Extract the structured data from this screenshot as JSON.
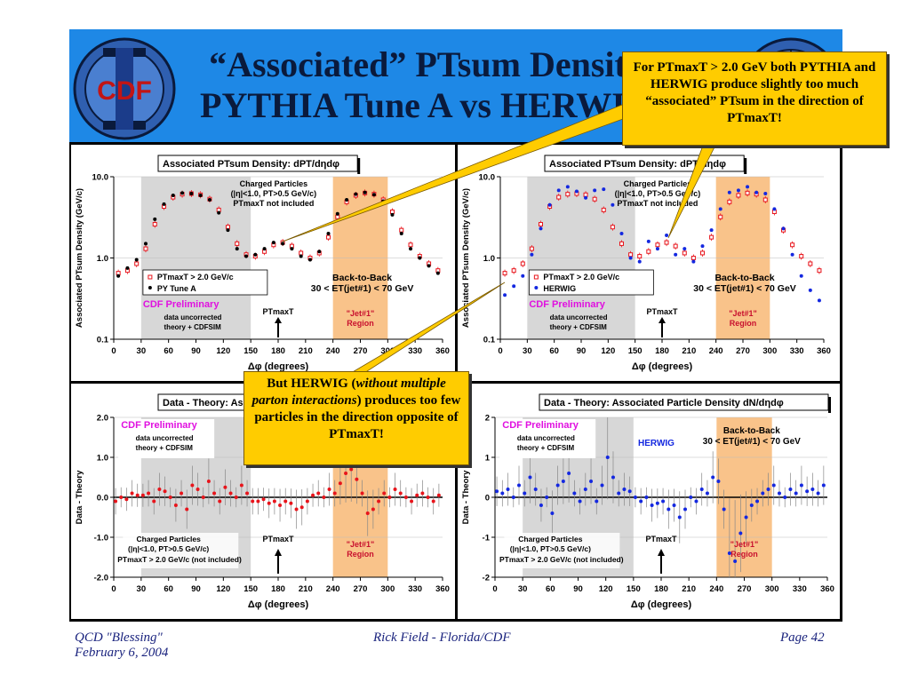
{
  "slide": {
    "title_line1": "“Associated” PTsum Density",
    "title_line2": "PYTHIA Tune A vs HERWIG",
    "logo_text": "CDF",
    "callout_top": "For PTmaxT > 2.0 GeV both PYTHIA and HERWIG produce slightly too much “associated” PTsum in the direction of PTmaxT!",
    "callout_mid_line1": "But HERWIG (",
    "callout_mid_italic": "without multiple parton interactions",
    "callout_mid_line2": ") produces too few particles in the direction opposite of PTmaxT!",
    "footer_left_1": "QCD \"Blessing\"",
    "footer_left_2": "February 6, 2004",
    "footer_center": "Rick Field - Florida/CDF",
    "footer_right": "Page 42"
  },
  "colors": {
    "pythia_red": "#e8141b",
    "herwig_blue": "#1428e0",
    "region_gray": "#d7d7d7",
    "region_orange": "#f9c38a",
    "banner": "#1e88e6",
    "callout": "#ffcc00",
    "prelim_magenta": "#e010e0"
  },
  "chart_data": [
    {
      "id": "tl",
      "type": "scatter",
      "title": "Associated PTsum Density: dPT/dηdφ",
      "xlabel": "Δφ (degrees)",
      "ylabel": "Associated PTsum Density (GeV/c)",
      "yscale": "log",
      "xlim": [
        0,
        360
      ],
      "ylim": [
        0.1,
        10
      ],
      "xticks": [
        "0",
        "30",
        "60",
        "90",
        "120",
        "150",
        "180",
        "210",
        "240",
        "270",
        "300",
        "330",
        "360"
      ],
      "yticks": [
        "0.1",
        "1.0",
        "10.0"
      ],
      "annotations": {
        "charged1": "Charged Particles",
        "charged2": "(|η|<1.0, PT>0.5 GeV/c)",
        "charged3": "PTmaxT not included",
        "b2b1": "Back-to-Back",
        "b2b2": "30 < ET(jet#1) < 70 GeV",
        "prelim": "CDF Preliminary",
        "uncor1": "data uncorrected",
        "uncor2": "theory + CDFSIM",
        "ptmax": "PTmaxT",
        "jet1": "\"Jet#1\"",
        "jet2": "Region"
      },
      "legend": [
        "PTmaxT > 2.0 GeV/c",
        "PY Tune A"
      ],
      "series": [
        {
          "name": "PTmaxT > 2.0 GeV/c",
          "x": [
            5,
            15,
            25,
            35,
            45,
            55,
            65,
            75,
            85,
            95,
            105,
            115,
            125,
            135,
            145,
            155,
            165,
            175,
            185,
            195,
            205,
            215,
            225,
            235,
            245,
            255,
            265,
            275,
            285,
            295,
            305,
            315,
            325,
            335,
            345,
            355
          ],
          "y": [
            0.65,
            0.7,
            0.85,
            1.3,
            2.6,
            4.3,
            5.6,
            6.1,
            6.2,
            6.0,
            5.3,
            3.9,
            2.4,
            1.5,
            1.1,
            1.05,
            1.2,
            1.45,
            1.55,
            1.4,
            1.15,
            1.0,
            1.15,
            1.8,
            3.2,
            4.9,
            5.9,
            6.3,
            6.1,
            5.2,
            3.7,
            2.2,
            1.45,
            1.05,
            0.85,
            0.7
          ]
        },
        {
          "name": "PY Tune A",
          "x": [
            5,
            15,
            25,
            35,
            45,
            55,
            65,
            75,
            85,
            95,
            105,
            115,
            125,
            135,
            145,
            155,
            165,
            175,
            185,
            195,
            205,
            215,
            225,
            235,
            245,
            255,
            265,
            275,
            285,
            295,
            305,
            315,
            325,
            335,
            345,
            355
          ],
          "y": [
            0.6,
            0.75,
            0.95,
            1.5,
            3.0,
            4.6,
            5.9,
            6.3,
            6.2,
            5.9,
            5.2,
            3.6,
            2.2,
            1.3,
            1.05,
            1.1,
            1.3,
            1.55,
            1.5,
            1.3,
            1.05,
            0.95,
            1.2,
            2.0,
            3.5,
            5.2,
            6.1,
            6.4,
            6.0,
            5.0,
            3.4,
            2.0,
            1.3,
            1.0,
            0.8,
            0.65
          ]
        }
      ]
    },
    {
      "id": "tr",
      "type": "scatter",
      "title": "Associated PTsum Density: dPT/dηdφ",
      "xlabel": "Δφ (degrees)",
      "ylabel": "Associated PTsum Density (GeV/c)",
      "yscale": "log",
      "xlim": [
        0,
        360
      ],
      "ylim": [
        0.1,
        10
      ],
      "xticks": [
        "0",
        "30",
        "60",
        "90",
        "120",
        "150",
        "180",
        "210",
        "240",
        "270",
        "300",
        "330",
        "360"
      ],
      "yticks": [
        "0.1",
        "1.0",
        "10.0"
      ],
      "annotations": {
        "charged1": "Charged Particles",
        "charged2": "(|η|<1.0, PT>0.5 GeV/c)",
        "charged3": "PTmaxT not included",
        "b2b1": "Back-to-Back",
        "b2b2": "30 < ET(jet#1) < 70 GeV",
        "prelim": "CDF Preliminary",
        "uncor1": "data uncorrected",
        "uncor2": "theory + CDFSIM",
        "ptmax": "PTmaxT",
        "jet1": "\"Jet#1\"",
        "jet2": "Region"
      },
      "legend": [
        "PTmaxT > 2.0 GeV/c",
        "HERWIG"
      ],
      "series": [
        {
          "name": "PTmaxT > 2.0 GeV/c",
          "x": [
            5,
            15,
            25,
            35,
            45,
            55,
            65,
            75,
            85,
            95,
            105,
            115,
            125,
            135,
            145,
            155,
            165,
            175,
            185,
            195,
            205,
            215,
            225,
            235,
            245,
            255,
            265,
            275,
            285,
            295,
            305,
            315,
            325,
            335,
            345,
            355
          ],
          "y": [
            0.65,
            0.7,
            0.85,
            1.3,
            2.6,
            4.3,
            5.6,
            6.1,
            6.2,
            6.0,
            5.3,
            3.9,
            2.4,
            1.5,
            1.1,
            1.05,
            1.2,
            1.45,
            1.55,
            1.4,
            1.15,
            1.0,
            1.15,
            1.8,
            3.2,
            4.9,
            5.9,
            6.3,
            6.1,
            5.2,
            3.7,
            2.2,
            1.45,
            1.05,
            0.85,
            0.7
          ]
        },
        {
          "name": "HERWIG",
          "x": [
            5,
            15,
            25,
            35,
            45,
            55,
            65,
            75,
            85,
            95,
            105,
            115,
            125,
            135,
            145,
            155,
            165,
            175,
            185,
            195,
            205,
            215,
            225,
            235,
            245,
            255,
            265,
            275,
            285,
            295,
            305,
            315,
            325,
            335,
            345,
            355
          ],
          "y": [
            0.35,
            0.45,
            0.6,
            1.1,
            2.3,
            4.5,
            6.8,
            7.5,
            6.6,
            5.5,
            6.8,
            7.0,
            4.5,
            2.0,
            1.0,
            0.9,
            1.6,
            1.3,
            1.9,
            1.1,
            1.3,
            0.9,
            1.4,
            2.2,
            4.0,
            6.4,
            6.8,
            7.5,
            6.4,
            6.2,
            4.0,
            2.3,
            1.1,
            0.6,
            0.4,
            0.3
          ]
        }
      ]
    },
    {
      "id": "bl",
      "type": "scatter",
      "title": "Data - Theory: Associated Particle Density dN/dηdφ",
      "xlabel": "Δφ (degrees)",
      "ylabel": "Data - Theory",
      "yscale": "linear",
      "xlim": [
        0,
        360
      ],
      "ylim": [
        -2,
        2
      ],
      "xticks": [
        "0",
        "30",
        "60",
        "90",
        "120",
        "150",
        "180",
        "210",
        "240",
        "270",
        "300",
        "330",
        "360"
      ],
      "yticks": [
        "-2.0",
        "-1.0",
        "0.0",
        "1.0",
        "2.0"
      ],
      "annotations": {
        "prelim": "CDF Preliminary",
        "uncor1": "data uncorrected",
        "uncor2": "theory + CDFSIM",
        "charged1": "Charged Particles",
        "charged2": "(|η|<1.0, PT>0.5 GeV/c)",
        "charged3": "PTmaxT > 2.0 GeV/c (not included)",
        "ptmax": "PTmaxT",
        "jet1": "\"Jet#1\"",
        "jet2": "Region"
      },
      "series": [
        {
          "name": "",
          "x": [
            2,
            8,
            14,
            20,
            26,
            32,
            38,
            44,
            50,
            56,
            62,
            68,
            74,
            80,
            86,
            92,
            98,
            104,
            110,
            116,
            122,
            128,
            134,
            140,
            146,
            152,
            158,
            164,
            170,
            176,
            182,
            188,
            194,
            200,
            206,
            212,
            218,
            224,
            230,
            236,
            242,
            248,
            254,
            260,
            266,
            272,
            278,
            284,
            290,
            296,
            302,
            308,
            314,
            320,
            326,
            332,
            338,
            344,
            350,
            356
          ],
          "y": [
            -0.1,
            0.0,
            -0.05,
            0.1,
            0.05,
            0.05,
            0.1,
            -0.1,
            0.2,
            0.15,
            0.0,
            -0.2,
            0.1,
            -0.3,
            0.3,
            0.2,
            0.0,
            0.4,
            0.1,
            -0.1,
            0.25,
            0.1,
            0.0,
            0.3,
            0.1,
            -0.1,
            -0.1,
            -0.05,
            -0.15,
            -0.1,
            -0.2,
            -0.1,
            -0.15,
            -0.3,
            -0.25,
            -0.1,
            0.05,
            0.1,
            0.0,
            0.2,
            0.1,
            0.35,
            0.6,
            0.7,
            0.45,
            0.1,
            -0.4,
            -0.3,
            -0.1,
            0.1,
            0.0,
            0.2,
            0.1,
            0.0,
            -0.1,
            0.05,
            0.1,
            0.0,
            -0.1,
            0.05
          ]
        }
      ]
    },
    {
      "id": "br",
      "type": "scatter",
      "title": "Data - Theory: Associated Particle Density dN/dηdφ",
      "xlabel": "Δφ (degrees)",
      "ylabel": "Data - Theory",
      "yscale": "linear",
      "xlim": [
        0,
        360
      ],
      "ylim": [
        -2,
        2
      ],
      "xticks": [
        "0",
        "30",
        "60",
        "90",
        "120",
        "150",
        "180",
        "210",
        "240",
        "270",
        "300",
        "330",
        "360"
      ],
      "yticks": [
        "-2",
        "-1",
        "0",
        "1",
        "2"
      ],
      "annotations": {
        "prelim": "CDF Preliminary",
        "uncor1": "data uncorrected",
        "uncor2": "theory + CDFSIM",
        "herwig": "HERWIG",
        "b2b1": "Back-to-Back",
        "b2b2": "30 < ET(jet#1) < 70 GeV",
        "charged1": "Charged Particles",
        "charged2": "(|η|<1.0, PT>0.5 GeV/c)",
        "charged3": "PTmaxT > 2.0 GeV/c (not included)",
        "ptmax": "PTmaxT",
        "jet1": "\"Jet#1\"",
        "jet2": "Region"
      },
      "series": [
        {
          "name": "HERWIG",
          "x": [
            2,
            8,
            14,
            20,
            26,
            32,
            38,
            44,
            50,
            56,
            62,
            68,
            74,
            80,
            86,
            92,
            98,
            104,
            110,
            116,
            122,
            128,
            134,
            140,
            146,
            152,
            158,
            164,
            170,
            176,
            182,
            188,
            194,
            200,
            206,
            212,
            218,
            224,
            230,
            236,
            242,
            248,
            254,
            260,
            266,
            272,
            278,
            284,
            290,
            296,
            302,
            308,
            314,
            320,
            326,
            332,
            338,
            344,
            350,
            356
          ],
          "y": [
            0.15,
            0.1,
            0.2,
            0.0,
            0.3,
            0.1,
            0.5,
            0.2,
            -0.2,
            0.0,
            -0.4,
            0.3,
            0.4,
            0.6,
            0.1,
            -0.1,
            0.2,
            0.4,
            -0.1,
            0.3,
            1.0,
            0.5,
            0.1,
            0.2,
            0.15,
            0.0,
            -0.1,
            0.0,
            -0.2,
            -0.15,
            -0.1,
            -0.3,
            -0.2,
            -0.5,
            -0.3,
            0.0,
            -0.1,
            0.2,
            0.1,
            0.5,
            0.4,
            -0.3,
            -1.4,
            -1.6,
            -0.9,
            -0.5,
            -0.2,
            -0.1,
            0.1,
            0.2,
            0.3,
            0.1,
            0.0,
            0.2,
            0.1,
            0.3,
            0.15,
            0.2,
            0.1,
            0.3
          ]
        }
      ]
    }
  ]
}
